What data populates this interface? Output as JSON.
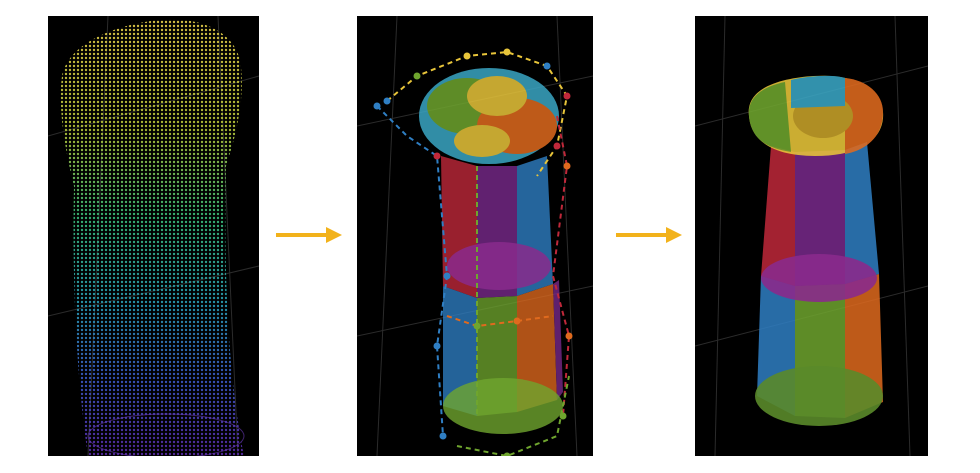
{
  "figure": {
    "panels": [
      {
        "name": "point-cloud",
        "style": "dense colored point cloud (yellow top to purple bottom)"
      },
      {
        "name": "part-fit-with-control-points",
        "style": "translucent colored segments with dashed control cages"
      },
      {
        "name": "smooth-fitted-surface",
        "style": "translucent colored segments, smooth surface"
      }
    ],
    "arrows": [
      {
        "from": "point-cloud",
        "to": "part-fit-with-control-points"
      },
      {
        "from": "part-fit-with-control-points",
        "to": "smooth-fitted-surface"
      }
    ],
    "colors": {
      "arrow": "#f2b21b",
      "panel_bg": "#000000",
      "grid": "#3a3a3a",
      "seg_yellow": "#e8c53a",
      "seg_red": "#c0283a",
      "seg_blue": "#2f7fc4",
      "seg_orange": "#e06a1e",
      "seg_green": "#6fa52e",
      "seg_purple": "#7a2a8c",
      "seg_teal": "#3aa6a0"
    }
  }
}
